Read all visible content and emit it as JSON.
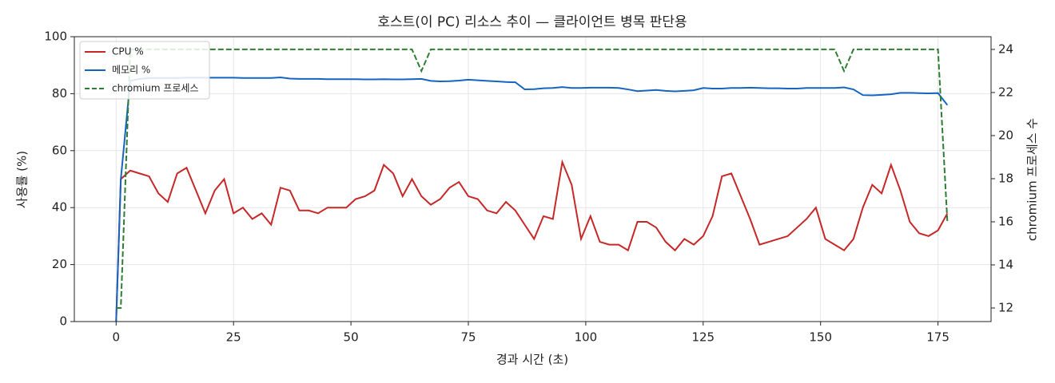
{
  "chart_data": {
    "type": "line",
    "title": "호스트(이 PC) 리소스 추이 — 클라이언트 병목 판단용",
    "xlabel": "경과 시간 (초)",
    "ylabel": "사용률 (%)",
    "y2label": "chromium 프로세스 수",
    "x": [
      0,
      1,
      3,
      5,
      7,
      9,
      11,
      13,
      15,
      17,
      19,
      21,
      23,
      25,
      27,
      29,
      31,
      33,
      35,
      37,
      39,
      41,
      43,
      45,
      47,
      49,
      51,
      53,
      55,
      57,
      59,
      61,
      63,
      65,
      67,
      69,
      71,
      73,
      75,
      77,
      79,
      81,
      83,
      85,
      87,
      89,
      91,
      93,
      95,
      97,
      99,
      101,
      103,
      105,
      107,
      109,
      111,
      113,
      115,
      117,
      119,
      121,
      123,
      125,
      127,
      129,
      131,
      133,
      135,
      137,
      139,
      141,
      143,
      145,
      147,
      149,
      151,
      153,
      155,
      157,
      159,
      161,
      163,
      165,
      167,
      169,
      171,
      173,
      175,
      177
    ],
    "series": [
      {
        "name": "CPU %",
        "color": "#c62828",
        "dashed": false,
        "values": [
          0,
          50,
          53,
          52,
          51,
          45,
          42,
          52,
          54,
          46,
          38,
          46,
          50,
          38,
          40,
          36,
          38,
          34,
          47,
          46,
          39,
          39,
          38,
          40,
          40,
          40,
          43,
          44,
          46,
          55,
          52,
          44,
          50,
          44,
          41,
          43,
          47,
          49,
          44,
          43,
          39,
          38,
          42,
          39,
          34,
          29,
          37,
          36,
          56,
          48,
          29,
          37,
          28,
          27,
          27,
          25,
          35,
          35,
          33,
          28,
          25,
          29,
          27,
          30,
          37,
          51,
          52,
          44,
          36,
          27,
          28,
          29,
          30,
          33,
          36,
          40,
          29,
          27,
          25,
          29,
          40,
          48,
          45,
          55,
          46,
          35,
          31,
          30,
          32,
          38
        ]
      },
      {
        "name": "메모리 %",
        "color": "#1565c0",
        "dashed": false,
        "values": [
          0,
          50,
          84.5,
          85.2,
          85.5,
          85.5,
          85.5,
          85.5,
          85.6,
          85.6,
          85.6,
          85.6,
          85.6,
          85.6,
          85.5,
          85.5,
          85.5,
          85.5,
          85.7,
          85.3,
          85.2,
          85.2,
          85.2,
          85.1,
          85.1,
          85.1,
          85.1,
          85,
          85,
          85.1,
          85,
          85,
          85.1,
          85.2,
          84.5,
          84.3,
          84.4,
          84.6,
          84.9,
          84.7,
          84.5,
          84.3,
          84.1,
          84,
          81.5,
          81.6,
          81.9,
          82,
          82.3,
          82,
          82,
          82.1,
          82.1,
          82.1,
          82,
          81.5,
          80.9,
          81.1,
          81.3,
          81,
          80.8,
          81,
          81.2,
          82,
          81.8,
          81.8,
          82,
          82,
          82.1,
          82,
          81.9,
          81.9,
          81.8,
          81.8,
          82,
          82,
          82,
          82,
          82.2,
          81.5,
          79.5,
          79.4,
          79.6,
          79.8,
          80.3,
          80.3,
          80.2,
          80.1,
          80.2,
          76
        ]
      },
      {
        "name": "chromium 프로세스",
        "color": "#2e7d32",
        "dashed": true,
        "axis": "y2",
        "values": [
          12,
          12,
          24,
          24,
          24,
          24,
          24,
          24,
          24,
          24,
          24,
          24,
          24,
          24,
          24,
          24,
          24,
          24,
          24,
          24,
          24,
          24,
          24,
          24,
          24,
          24,
          24,
          24,
          24,
          24,
          24,
          24,
          24,
          23,
          24,
          24,
          24,
          24,
          24,
          24,
          24,
          24,
          24,
          24,
          24,
          24,
          24,
          24,
          24,
          24,
          24,
          24,
          24,
          24,
          24,
          24,
          24,
          24,
          24,
          24,
          24,
          24,
          24,
          24,
          24,
          24,
          24,
          24,
          24,
          24,
          24,
          24,
          24,
          24,
          24,
          24,
          24,
          24,
          23,
          24,
          24,
          24,
          24,
          24,
          24,
          24,
          24,
          24,
          24,
          16
        ]
      }
    ],
    "xlim": [
      -8.9,
      186.3
    ],
    "ylim": [
      0,
      100
    ],
    "y2lim": [
      11.37,
      24.59
    ],
    "xticks": [
      0,
      25,
      50,
      75,
      100,
      125,
      150,
      175
    ],
    "yticks": [
      0,
      20,
      40,
      60,
      80,
      100
    ],
    "y2ticks": [
      12,
      14,
      16,
      18,
      20,
      22,
      24
    ],
    "grid": true,
    "legend": "upper left"
  }
}
